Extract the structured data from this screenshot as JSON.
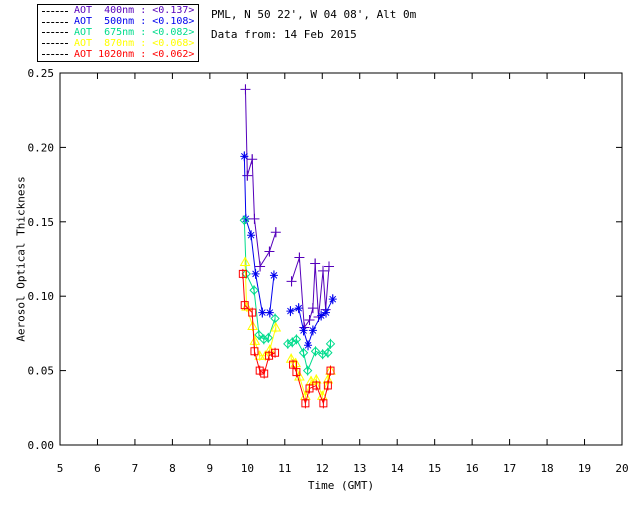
{
  "header": {
    "line1": "PML, N 50 22', W 04 08', Alt 0m",
    "line2": "Data from: 14 Feb 2015"
  },
  "legend": {
    "items": [
      {
        "text": "AOT  400nm : <0.137>",
        "color": "#5500BB"
      },
      {
        "text": "AOT  500nm : <0.108>",
        "color": "#0000EE"
      },
      {
        "text": "AOT  675nm : <0.082>",
        "color": "#00DC8C"
      },
      {
        "text": "AOT  870nm : <0.068>",
        "color": "#FFFF00"
      },
      {
        "text": "AOT 1020nm : <0.062>",
        "color": "#FF0000"
      }
    ]
  },
  "chart_data": {
    "type": "line",
    "title": "",
    "xlabel": "Time (GMT)",
    "ylabel": "Aerosol Optical Thickness",
    "xlim": [
      5,
      20
    ],
    "ylim": [
      0.0,
      0.25
    ],
    "xticks": [
      5,
      6,
      7,
      8,
      9,
      10,
      11,
      12,
      13,
      14,
      15,
      16,
      17,
      18,
      19,
      20
    ],
    "yticks": [
      0.0,
      0.05,
      0.1,
      0.15,
      0.2,
      0.25
    ],
    "grid": false,
    "legend_position": "top-left-outside",
    "axis_color": "#000000",
    "series": [
      {
        "name": "AOT 400nm",
        "mean": "<0.137>",
        "color": "#5500BB",
        "marker": "plus",
        "segments": [
          {
            "t": [
              9.95,
              10.0,
              10.13,
              10.19,
              10.34,
              10.59,
              10.76
            ],
            "v": [
              0.239,
              0.181,
              0.192,
              0.152,
              0.12,
              0.13,
              0.143
            ]
          },
          {
            "t": [
              11.18,
              11.39,
              11.52,
              11.66,
              11.75,
              11.81,
              11.9,
              12.02,
              12.09,
              12.18
            ],
            "v": [
              0.11,
              0.126,
              0.079,
              0.084,
              0.092,
              0.122,
              0.086,
              0.117,
              0.091,
              0.12
            ]
          }
        ]
      },
      {
        "name": "AOT 500nm",
        "mean": "<0.108>",
        "color": "#0000EE",
        "marker": "asterisk",
        "segments": [
          {
            "t": [
              9.92,
              9.96,
              10.1,
              10.22,
              10.4,
              10.6,
              10.71
            ],
            "v": [
              0.194,
              0.152,
              0.141,
              0.115,
              0.089,
              0.089,
              0.114
            ]
          },
          {
            "t": [
              11.15,
              11.37,
              11.5,
              11.62,
              11.75,
              11.97,
              12.1,
              12.28
            ],
            "v": [
              0.09,
              0.092,
              0.077,
              0.067,
              0.077,
              0.087,
              0.089,
              0.098
            ]
          }
        ]
      },
      {
        "name": "AOT 675nm",
        "mean": "<0.082>",
        "color": "#00DC8C",
        "marker": "diamond",
        "segments": [
          {
            "t": [
              9.92,
              9.97,
              10.18,
              10.31,
              10.44,
              10.56,
              10.74
            ],
            "v": [
              0.151,
              0.115,
              0.104,
              0.074,
              0.071,
              0.072,
              0.085
            ]
          },
          {
            "t": [
              11.08,
              11.2,
              11.31,
              11.5,
              11.61,
              11.82,
              12.01,
              12.15,
              12.22
            ],
            "v": [
              0.068,
              0.069,
              0.071,
              0.062,
              0.05,
              0.063,
              0.061,
              0.062,
              0.068
            ]
          }
        ]
      },
      {
        "name": "AOT 870nm",
        "mean": "<0.068>",
        "color": "#FFFF00",
        "marker": "triangle",
        "segments": [
          {
            "t": [
              9.94,
              9.98,
              10.14,
              10.2,
              10.33,
              10.48,
              10.6,
              10.76
            ],
            "v": [
              0.123,
              0.093,
              0.08,
              0.07,
              0.06,
              0.06,
              0.064,
              0.079
            ]
          },
          {
            "t": [
              11.17,
              11.29,
              11.39,
              11.55,
              11.7,
              11.84,
              12.0,
              12.15,
              12.22
            ],
            "v": [
              0.058,
              0.055,
              0.046,
              0.033,
              0.043,
              0.044,
              0.033,
              0.044,
              0.05
            ]
          }
        ]
      },
      {
        "name": "AOT 1020nm",
        "mean": "<0.062>",
        "color": "#FF0000",
        "marker": "square",
        "segments": [
          {
            "t": [
              9.88,
              9.93,
              10.13,
              10.19,
              10.33,
              10.45,
              10.58,
              10.74
            ],
            "v": [
              0.115,
              0.094,
              0.089,
              0.063,
              0.05,
              0.048,
              0.06,
              0.062
            ]
          },
          {
            "t": [
              11.22,
              11.31,
              11.55,
              11.66,
              11.84,
              12.03,
              12.15,
              12.22
            ],
            "v": [
              0.054,
              0.049,
              0.028,
              0.038,
              0.04,
              0.028,
              0.04,
              0.05
            ]
          }
        ]
      }
    ]
  }
}
